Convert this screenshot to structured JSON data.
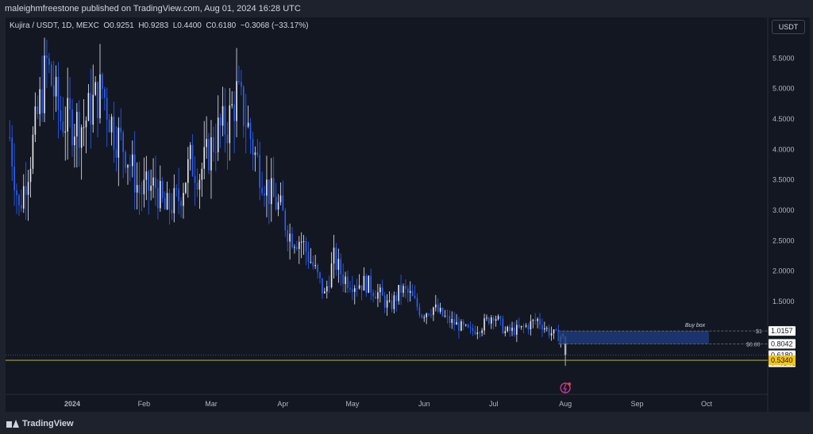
{
  "header": {
    "published_text": "maleighmfreestone published on TradingView.com, Aug 01, 2024 16:28 UTC"
  },
  "legend": {
    "symbol": "Kujira / USDT, 1D, MEXC",
    "open_label": "O",
    "open": "0.9251",
    "high_label": "H",
    "high": "0.9283",
    "low_label": "L",
    "low": "0.4400",
    "close_label": "C",
    "close": "0.6180",
    "change": "−0.3068 (−33.17%)"
  },
  "currency_button": "USDT",
  "colors": {
    "up": "#e9eaee",
    "down": "#2962ff",
    "background": "#131722",
    "buy_box": "#1e3a7a",
    "support": "#c8c84a"
  },
  "footer": {
    "logo_text": "TradingView"
  },
  "chart_data": {
    "type": "candlestick",
    "y_scale": "linear",
    "ylim": [
      0.1,
      5.95
    ],
    "y_ticks": [
      "5.5000",
      "5.0000",
      "4.5000",
      "4.0000",
      "3.5000",
      "3.0000",
      "2.5000",
      "2.0000",
      "1.5000"
    ],
    "y_tick_values": [
      5.5,
      5.0,
      4.5,
      4.0,
      3.5,
      3.0,
      2.5,
      2.0,
      1.5
    ],
    "x_ticks": [
      "2024",
      "Feb",
      "Mar",
      "Apr",
      "May",
      "Jun",
      "Jul",
      "Aug",
      "Sep",
      "Oct"
    ],
    "x_tick_dates": [
      "2024-01-01",
      "2024-02-01",
      "2024-03-01",
      "2024-04-01",
      "2024-05-01",
      "2024-06-01",
      "2024-07-01",
      "2024-08-01",
      "2024-09-01",
      "2024-10-01"
    ],
    "xlim": [
      "2023-12-05",
      "2024-10-31"
    ],
    "price_path": [
      [
        "2023-12-05",
        4.2
      ],
      [
        "2023-12-09",
        3.0
      ],
      [
        "2023-12-14",
        3.9
      ],
      [
        "2023-12-21",
        5.4
      ],
      [
        "2023-12-27",
        4.5
      ],
      [
        "2024-01-06",
        4.4
      ],
      [
        "2024-01-09",
        4.7
      ],
      [
        "2024-01-14",
        5.0
      ],
      [
        "2024-01-19",
        4.3
      ],
      [
        "2024-01-24",
        4.0
      ],
      [
        "2024-01-30",
        3.3
      ],
      [
        "2024-02-06",
        3.4
      ],
      [
        "2024-02-10",
        3.0
      ],
      [
        "2024-02-16",
        3.2
      ],
      [
        "2024-02-21",
        3.8
      ],
      [
        "2024-02-25",
        3.6
      ],
      [
        "2024-03-04",
        4.3
      ],
      [
        "2024-03-08",
        4.4
      ],
      [
        "2024-03-12",
        4.9
      ],
      [
        "2024-03-16",
        4.5
      ],
      [
        "2024-03-20",
        3.9
      ],
      [
        "2024-03-26",
        3.3
      ],
      [
        "2024-03-31",
        3.0
      ],
      [
        "2024-04-04",
        2.6
      ],
      [
        "2024-04-09",
        2.5
      ],
      [
        "2024-04-15",
        2.0
      ],
      [
        "2024-04-19",
        1.6
      ],
      [
        "2024-04-23",
        2.2
      ],
      [
        "2024-04-27",
        1.9
      ],
      [
        "2024-05-02",
        1.8
      ],
      [
        "2024-05-07",
        1.8
      ],
      [
        "2024-05-13",
        1.6
      ],
      [
        "2024-05-17",
        1.4
      ],
      [
        "2024-05-22",
        1.7
      ],
      [
        "2024-05-26",
        1.6
      ],
      [
        "2024-05-31",
        1.3
      ],
      [
        "2024-06-05",
        1.4
      ],
      [
        "2024-06-11",
        1.2
      ],
      [
        "2024-06-16",
        1.1
      ],
      [
        "2024-06-21",
        1.0
      ],
      [
        "2024-06-26",
        1.1
      ],
      [
        "2024-07-01",
        1.3
      ],
      [
        "2024-07-06",
        1.0
      ],
      [
        "2024-07-13",
        1.05
      ],
      [
        "2024-07-20",
        1.2
      ],
      [
        "2024-07-25",
        1.0
      ],
      [
        "2024-07-29",
        0.93
      ],
      [
        "2024-07-31",
        0.9251
      ]
    ],
    "last_candle": {
      "date": "2024-08-01",
      "open": 0.9251,
      "high": 0.9283,
      "low": 0.44,
      "close": 0.618
    },
    "annotations": {
      "buy_box": {
        "label": "Buy box",
        "top_price": 1.0157,
        "bottom_price": 0.8042,
        "start": "2024-07-29",
        "end": "2024-10-02",
        "top_label": "$1",
        "bottom_label": "$0.80"
      },
      "support_line": {
        "price": 0.534
      },
      "prev_close_line": {
        "price": 0.618
      }
    },
    "price_labels": [
      {
        "text": "1.0157",
        "price": 1.0157,
        "style": "white"
      },
      {
        "text": "0.8042",
        "price": 0.8042,
        "style": "white"
      },
      {
        "text": "0.6180",
        "sub": "07:31:02",
        "price": 0.618,
        "style": "white"
      },
      {
        "text": "0.5340",
        "price": 0.534,
        "style": "yellow"
      }
    ]
  }
}
